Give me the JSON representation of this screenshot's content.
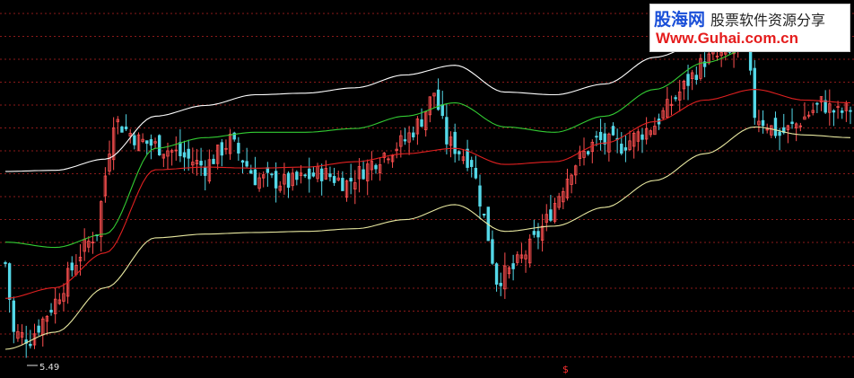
{
  "watermark": {
    "brand": "股海网",
    "slogan": "股票软件资源分享",
    "url": "Www.Guhai.com.cn"
  },
  "colors": {
    "background": "#000000",
    "grid": "#8b1a1a",
    "upper_band": "#ffffff",
    "mid_line": "#33cc33",
    "ma_line": "#e02020",
    "lower_band": "#e8e8a0",
    "candle_up": "#ff5050",
    "candle_down": "#54d8e8"
  },
  "chart_data": {
    "type": "candlestick",
    "title": "",
    "grid": true,
    "low_annotation": "5.49",
    "bottom_marker": "$",
    "x_index": [
      0,
      12,
      24,
      36,
      48,
      60,
      72,
      84,
      96,
      108,
      120,
      132,
      144,
      156,
      168,
      180,
      192,
      203
    ],
    "lines": [
      {
        "color": "white",
        "values": [
          8.72,
          8.74,
          8.95,
          9.75,
          9.95,
          10.15,
          10.18,
          10.28,
          10.52,
          10.7,
          10.2,
          10.15,
          10.35,
          10.85,
          11.15,
          11.25,
          11.18,
          11.18
        ]
      },
      {
        "color": "green",
        "values": [
          7.4,
          7.3,
          7.55,
          9.15,
          9.35,
          9.45,
          9.45,
          9.52,
          9.75,
          10.0,
          9.55,
          9.45,
          9.75,
          10.25,
          10.75,
          11.05,
          11.2,
          11.18
        ]
      },
      {
        "color": "red",
        "values": [
          6.35,
          6.55,
          7.2,
          8.75,
          8.8,
          8.78,
          8.8,
          8.9,
          9.05,
          9.15,
          8.85,
          8.9,
          9.25,
          9.65,
          10.05,
          10.25,
          10.05,
          10.0
        ]
      },
      {
        "color": "yellow",
        "values": [
          5.4,
          5.72,
          6.55,
          7.48,
          7.55,
          7.58,
          7.6,
          7.65,
          7.82,
          8.1,
          7.6,
          7.7,
          8.05,
          8.55,
          9.05,
          9.55,
          9.4,
          9.35
        ]
      }
    ],
    "close_path": [
      {
        "i": 0,
        "v": 7.0
      },
      {
        "i": 2,
        "v": 5.7
      },
      {
        "i": 6,
        "v": 5.6
      },
      {
        "i": 12,
        "v": 6.3
      },
      {
        "i": 18,
        "v": 7.2
      },
      {
        "i": 22,
        "v": 7.6
      },
      {
        "i": 26,
        "v": 9.7
      },
      {
        "i": 32,
        "v": 9.3
      },
      {
        "i": 40,
        "v": 9.1
      },
      {
        "i": 48,
        "v": 8.8
      },
      {
        "i": 54,
        "v": 9.3
      },
      {
        "i": 60,
        "v": 8.6
      },
      {
        "i": 68,
        "v": 8.5
      },
      {
        "i": 76,
        "v": 8.7
      },
      {
        "i": 82,
        "v": 8.5
      },
      {
        "i": 90,
        "v": 9.0
      },
      {
        "i": 96,
        "v": 9.3
      },
      {
        "i": 100,
        "v": 9.7
      },
      {
        "i": 103,
        "v": 10.2
      },
      {
        "i": 106,
        "v": 9.3
      },
      {
        "i": 112,
        "v": 8.9
      },
      {
        "i": 116,
        "v": 7.5
      },
      {
        "i": 118,
        "v": 6.7
      },
      {
        "i": 122,
        "v": 6.9
      },
      {
        "i": 126,
        "v": 7.3
      },
      {
        "i": 130,
        "v": 7.8
      },
      {
        "i": 136,
        "v": 8.8
      },
      {
        "i": 142,
        "v": 9.3
      },
      {
        "i": 148,
        "v": 9.2
      },
      {
        "i": 156,
        "v": 9.6
      },
      {
        "i": 162,
        "v": 10.2
      },
      {
        "i": 168,
        "v": 10.8
      },
      {
        "i": 174,
        "v": 10.9
      },
      {
        "i": 178,
        "v": 11.1
      },
      {
        "i": 180,
        "v": 9.8
      },
      {
        "i": 186,
        "v": 9.4
      },
      {
        "i": 190,
        "v": 9.6
      },
      {
        "i": 196,
        "v": 10.0
      },
      {
        "i": 200,
        "v": 9.8
      },
      {
        "i": 203,
        "v": 9.9
      }
    ],
    "y_range": [
      5.35,
      11.55
    ],
    "candle_count": 204
  }
}
